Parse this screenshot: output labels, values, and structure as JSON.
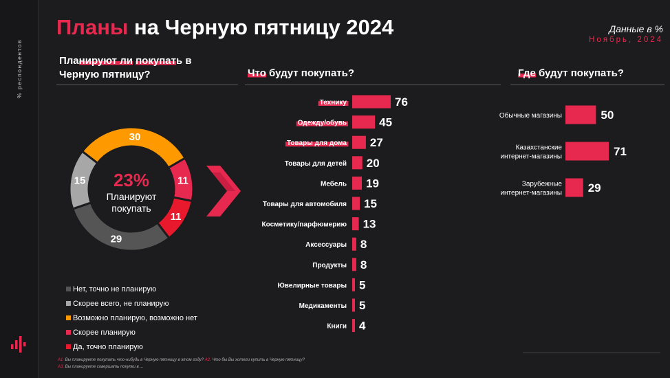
{
  "header": {
    "title_accent": "Планы",
    "title_rest": " на Черную пятницу 2024",
    "unit_note": "Данные в %",
    "date_note": "Ноябрь, 2024"
  },
  "sidebar": {
    "label": "% респондентов",
    "logo_icon": "bar-logo-icon"
  },
  "colors": {
    "accent": "#e8294f",
    "orange": "#ff9900",
    "gray_light": "#a7a7a7",
    "gray_dark": "#555555",
    "red": "#e8192c"
  },
  "donut": {
    "question_parts": [
      {
        "text": "Пла",
        "hl": false
      },
      {
        "text": "нируют ли",
        "hl": true
      },
      {
        "text": " ",
        "hl": false
      },
      {
        "text": "покупат",
        "hl": true
      },
      {
        "text": "ь в",
        "hl": false
      }
    ],
    "question_line2": "Черную пятницу?",
    "center_value": "23%",
    "center_line1": "Планируют",
    "center_line2": "покупать"
  },
  "what": {
    "title_hl": "Что",
    "title_rest": " будут покупать?"
  },
  "where": {
    "title_hl": "Где",
    "title_rest": " будут покупать?"
  },
  "legend": [
    {
      "label": "Нет, точно не планирую",
      "color": "#555555"
    },
    {
      "label": "Скорее всего, не планирую",
      "color": "#a7a7a7"
    },
    {
      "label": "Возможно планирую, возможно нет",
      "color": "#ff9900"
    },
    {
      "label": "Скорее планирую",
      "color": "#e8294f"
    },
    {
      "label": "Да, точно планирую",
      "color": "#e8192c"
    }
  ],
  "footnotes": {
    "line1_q1": "A1.",
    "line1_t1": " Вы планируете покупать что-нибудь в Черную пятницу в этом году? ",
    "line1_q2": "A2.",
    "line1_t2": " Что бы Вы хотели купить в Черную пятницу?",
    "line2_q": "A3.",
    "line2_t": " Вы планируете совершать покупки в ..."
  },
  "chart_data": [
    {
      "type": "pie",
      "series": [
        {
          "name": "Да, точно планирую",
          "value": 11,
          "color": "#e8192c"
        },
        {
          "name": "Скорее планирую",
          "value": 11,
          "color": "#e8294f"
        },
        {
          "name": "Возможно планирую, возможно нет",
          "value": 30,
          "color": "#ff9900"
        },
        {
          "name": "Скорее всего, не планирую",
          "value": 15,
          "color": "#a7a7a7"
        },
        {
          "name": "Нет, точно не планирую",
          "value": 29,
          "color": "#555555"
        }
      ],
      "legend": "bottom-left"
    },
    {
      "type": "bar",
      "orientation": "horizontal",
      "title": "Что будут покупать?",
      "categories": [
        "Технику",
        "Одежду/обувь",
        "Товары для дома",
        "Товары для детей",
        "Мебель",
        "Товары для автомобиля",
        "Косметику/парфюмерию",
        "Аксессуары",
        "Продукты",
        "Ювелирные товары",
        "Медикаменты",
        "Книги"
      ],
      "highlighted": [
        "Технику",
        "Одежду/обувь",
        "Товары для дома"
      ],
      "values": [
        76,
        45,
        27,
        20,
        19,
        15,
        13,
        8,
        8,
        5,
        5,
        4
      ],
      "xlim": [
        0,
        76
      ],
      "grid": false
    },
    {
      "type": "bar",
      "orientation": "horizontal",
      "title": "Где будут покупать?",
      "categories": [
        [
          "Обычные магазины"
        ],
        [
          "Казахстанские",
          "интернет-магазины"
        ],
        [
          "Зарубежные",
          "интернет-магазины"
        ]
      ],
      "values": [
        50,
        71,
        29
      ],
      "xlim": [
        0,
        71
      ],
      "grid": false
    }
  ]
}
